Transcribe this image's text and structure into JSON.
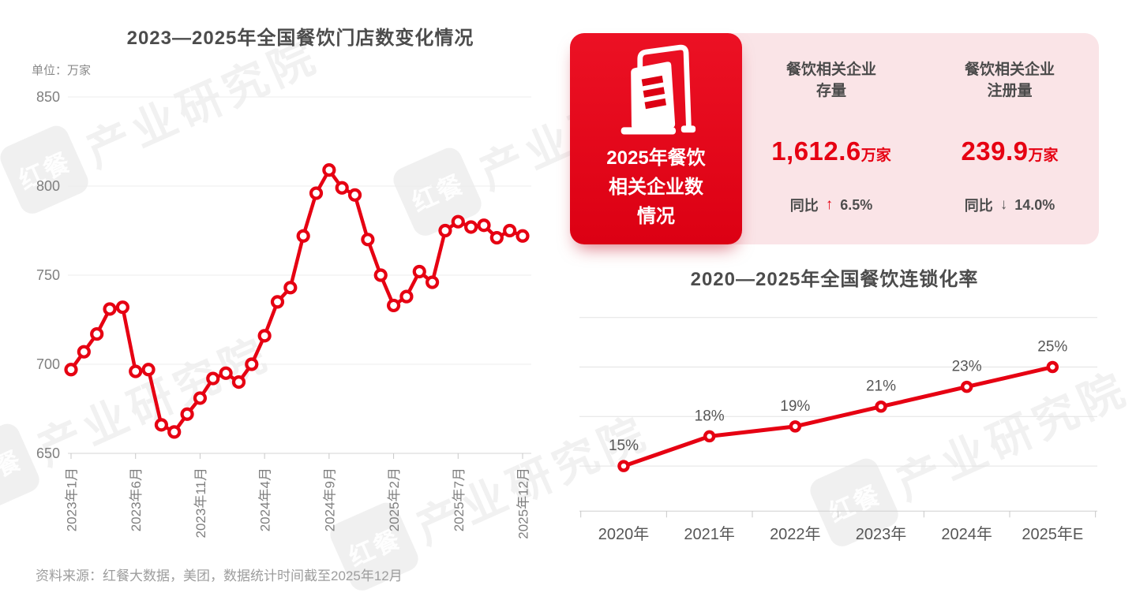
{
  "colors": {
    "accent_red": "#e60012",
    "card_red": "#e00016",
    "card_pink": "#fae4e7",
    "title_gray": "#4c4c4c",
    "axis_gray": "#7f7f7f",
    "grid_gray": "#ededed"
  },
  "watermark": {
    "logo_text": "红餐",
    "text": "产业研究院"
  },
  "stats_card": {
    "panel_title_line1": "2025年餐饮",
    "panel_title_line2": "相关企业数",
    "panel_title_line3": "情况",
    "metrics": [
      {
        "label_line1": "餐饮相关企业",
        "label_line2": "存量",
        "value": "1,612.6",
        "unit": "万家",
        "yoy_label": "同比",
        "arrow": "↑",
        "direction": "up",
        "change": "6.5%"
      },
      {
        "label_line1": "餐饮相关企业",
        "label_line2": "注册量",
        "value": "239.9",
        "unit": "万家",
        "yoy_label": "同比",
        "arrow": "↓",
        "direction": "down",
        "change": "14.0%"
      }
    ]
  },
  "footer": {
    "source_note": "资料来源：红餐大数据，美团，数据统计时间截至2025年12月"
  },
  "chart_data": [
    {
      "id": "store-count",
      "type": "line",
      "title": "2023—2025年全国餐饮门店数变化情况",
      "unit_label": "单位：万家",
      "ylabel": "万家",
      "ylim": [
        650,
        850
      ],
      "y_ticks": [
        650,
        700,
        750,
        800,
        850
      ],
      "grid": true,
      "x_tick_labels": [
        "2023年1月",
        "2023年6月",
        "2023年11月",
        "2024年4月",
        "2024年9月",
        "2025年2月",
        "2025年7月",
        "2025年12月"
      ],
      "x_tick_indices": [
        0,
        5,
        10,
        15,
        20,
        25,
        30,
        35
      ],
      "values": [
        697,
        707,
        717,
        731,
        732,
        696,
        697,
        666,
        662,
        672,
        681,
        692,
        695,
        690,
        700,
        716,
        735,
        743,
        772,
        796,
        809,
        799,
        795,
        770,
        750,
        733,
        738,
        752,
        746,
        775,
        780,
        777,
        778,
        771,
        775,
        772
      ],
      "line_color": "#e60012"
    },
    {
      "id": "chain-rate",
      "type": "line",
      "title": "2020—2025年全国餐饮连锁化率",
      "categories": [
        "2020年",
        "2021年",
        "2022年",
        "2023年",
        "2024年",
        "2025年E"
      ],
      "values": [
        15,
        18,
        19,
        21,
        23,
        25
      ],
      "data_labels": [
        "15%",
        "18%",
        "19%",
        "21%",
        "23%",
        "25%"
      ],
      "ylim": [
        10,
        30
      ],
      "grid_values": [
        30,
        25,
        20,
        15
      ],
      "grid": true,
      "legend": "none",
      "line_color": "#e60012"
    }
  ]
}
